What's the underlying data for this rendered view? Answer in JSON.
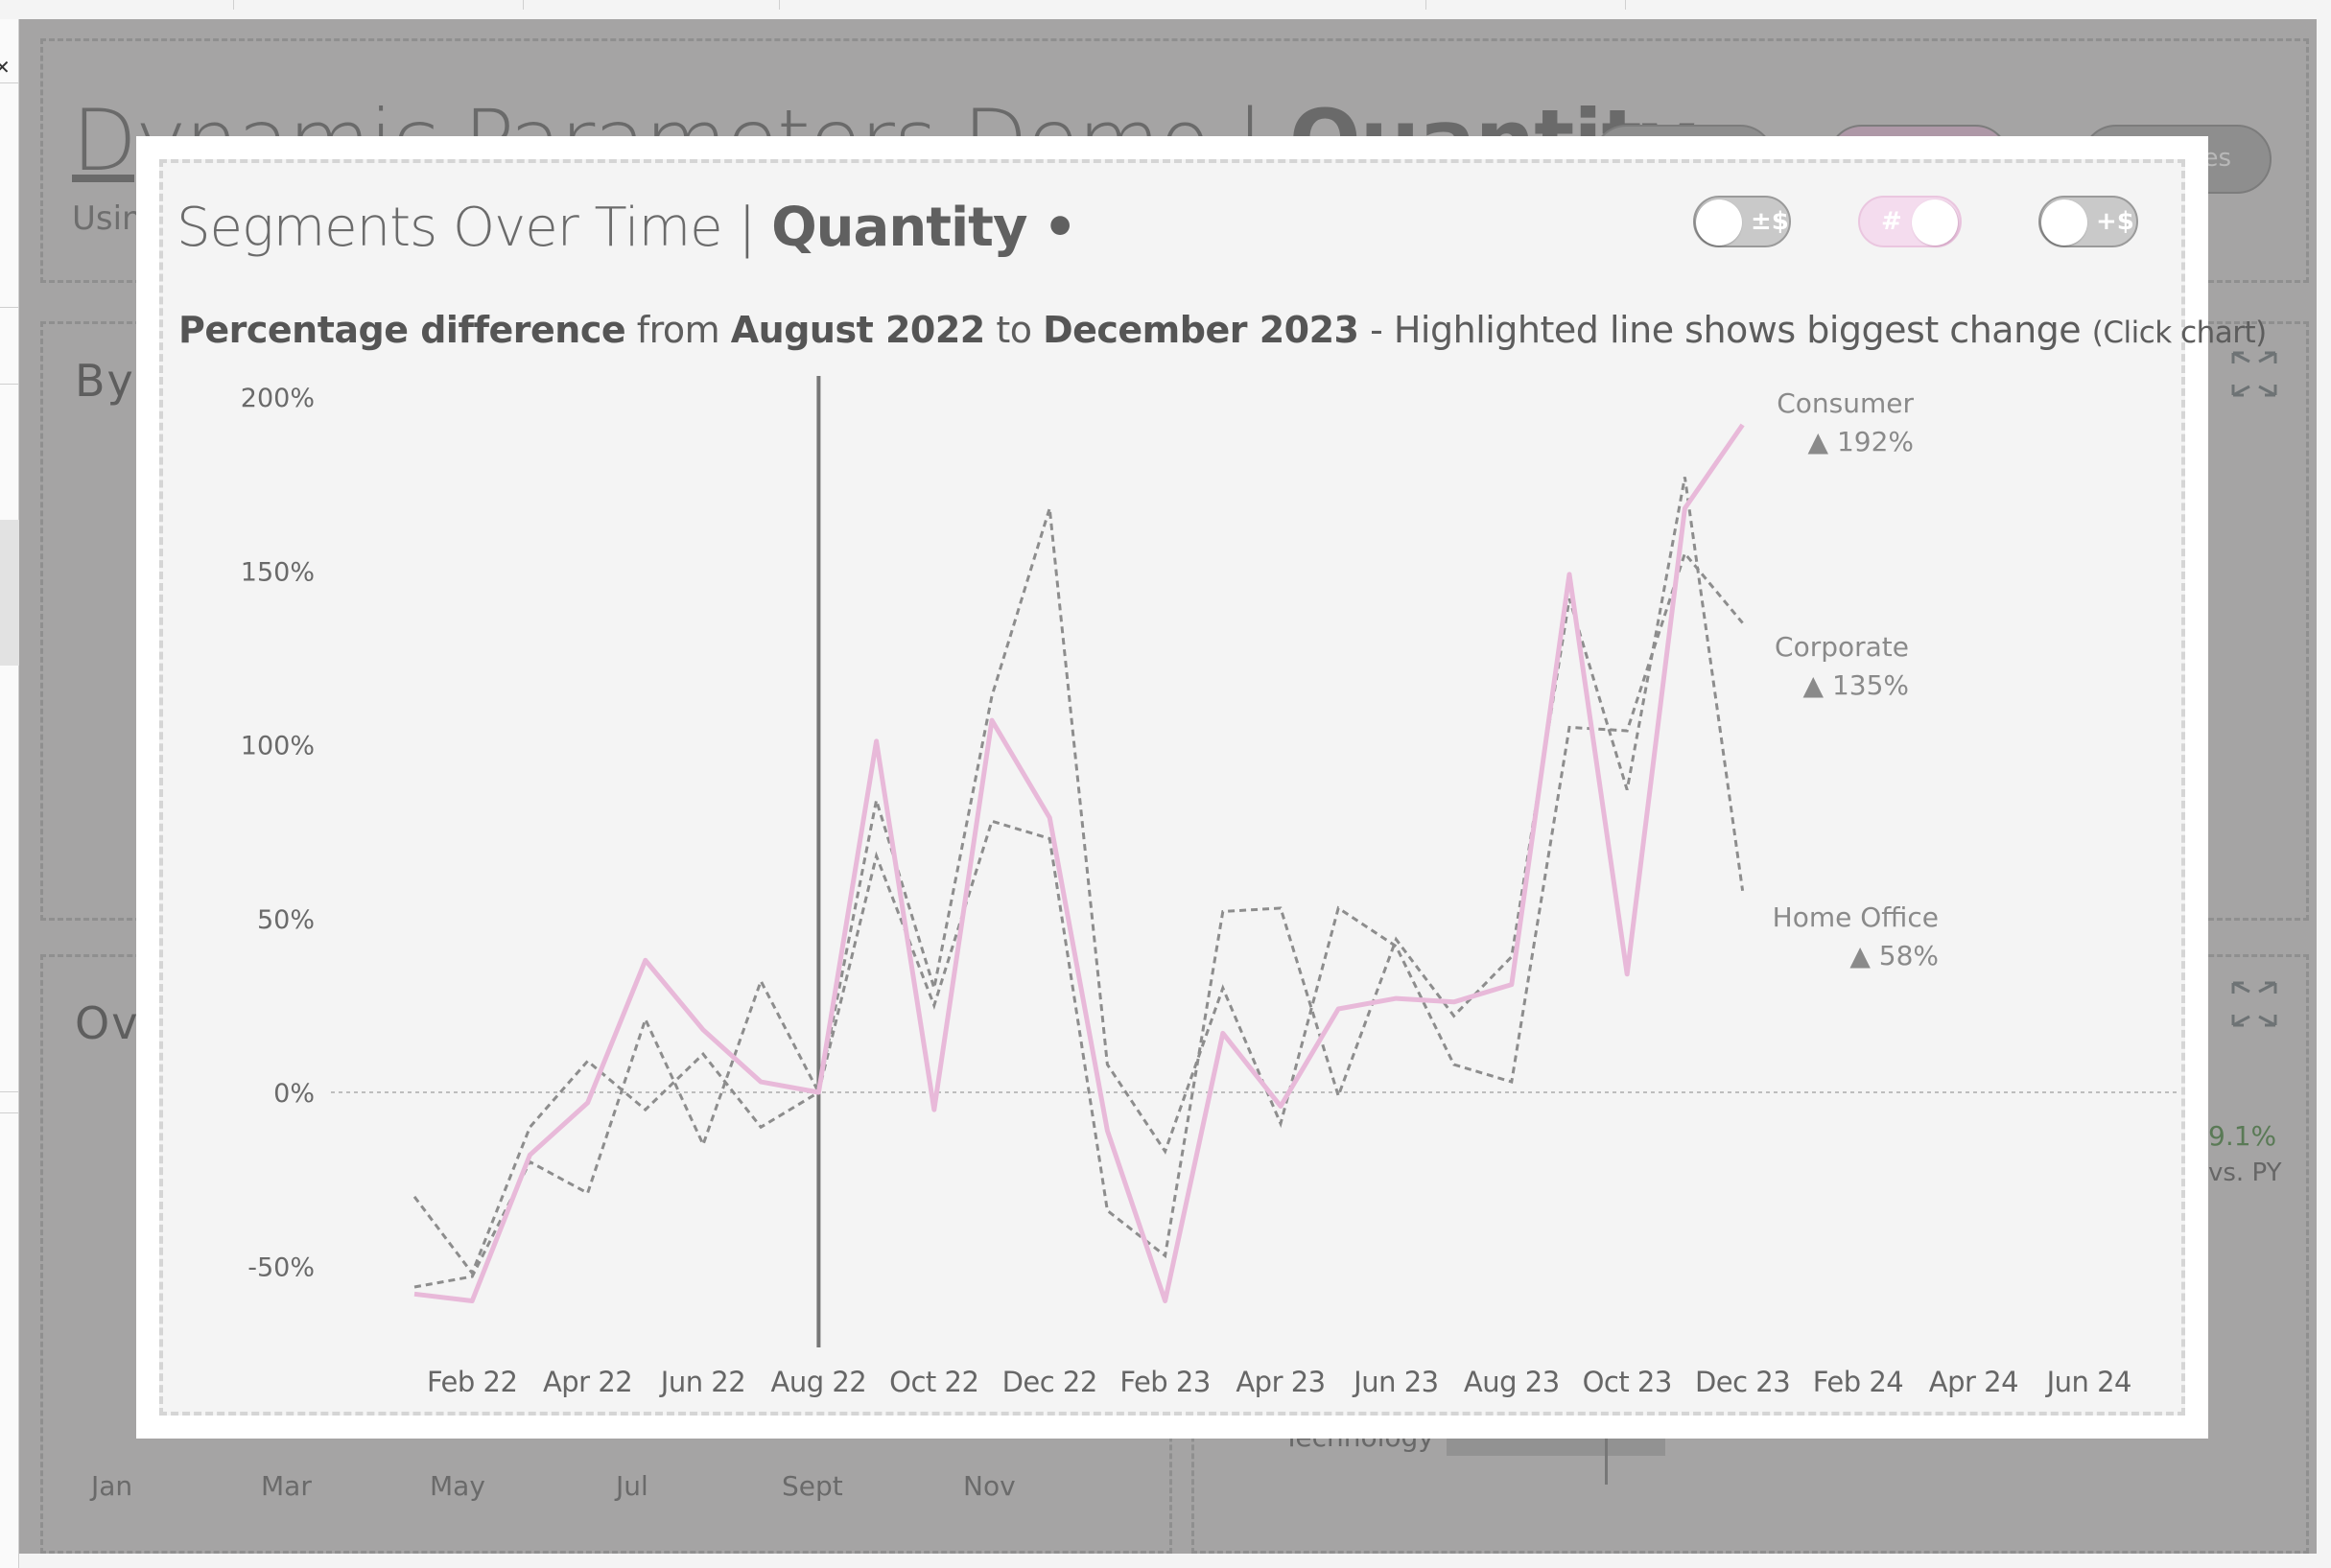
{
  "background_dashboard": {
    "title_part1": "Dynamic Parameters Demo",
    "title_sep": "|",
    "title_part2": "Quantity",
    "subtitle_partial": "Usin",
    "panel_titles_partial": [
      "By",
      "Ov"
    ],
    "pill_partial_text": "es",
    "month_axis": [
      "Jan",
      "Mar",
      "May",
      "Jul",
      "Sept",
      "Nov"
    ],
    "kpi_value_partial": "9.1%",
    "kpi_label_partial": "vs. PY",
    "bar_label_partial": "Technology",
    "kpi_color": "#5a7a56"
  },
  "modal": {
    "title_regular": "Segments Over Time",
    "title_sep": "|",
    "title_bold": "Quantity",
    "title_dot": "•",
    "subtitle": {
      "t1": "Percentage difference",
      "t2": " from ",
      "t3": "August 2022",
      "t4": " to ",
      "t5": "December 2023",
      "t6": " - Highlighted line shows biggest change ",
      "t7": "(Click chart)"
    },
    "toggles": [
      {
        "name": "profit-toggle",
        "glyph": "±$",
        "on": false
      },
      {
        "name": "quantity-toggle",
        "glyph": "#",
        "on": true
      },
      {
        "name": "sales-toggle",
        "glyph": "+$",
        "on": false
      }
    ]
  },
  "colors": {
    "highlight": "#e8b9d9",
    "dashed": "#8d8d8d",
    "reference_line": "#777777",
    "zero_line": "#bdbdbd",
    "toggle_on": "#f4dcee"
  },
  "chart_data": {
    "type": "line",
    "title": "Segments Over Time | Quantity",
    "subtitle": "Percentage difference from August 2022 to December 2023 - Highlighted line shows biggest change (Click chart)",
    "xlabel": "",
    "ylabel": "",
    "x": [
      "Jan 22",
      "Feb 22",
      "Mar 22",
      "Apr 22",
      "May 22",
      "Jun 22",
      "Jul 22",
      "Aug 22",
      "Sep 22",
      "Oct 22",
      "Nov 22",
      "Dec 22",
      "Jan 23",
      "Feb 23",
      "Mar 23",
      "Apr 23",
      "May 23",
      "Jun 23",
      "Jul 23",
      "Aug 23",
      "Sep 23",
      "Oct 23",
      "Nov 23",
      "Dec 23"
    ],
    "x_axis_ticks": [
      "Feb 22",
      "Apr 22",
      "Jun 22",
      "Aug 22",
      "Oct 22",
      "Dec 22",
      "Feb 23",
      "Apr 23",
      "Jun 23",
      "Aug 23",
      "Oct 23",
      "Dec 23",
      "Feb 24",
      "Apr 24",
      "Jun 24"
    ],
    "x_axis_range": [
      "Dec 21",
      "Jul 24"
    ],
    "y_ticks": [
      "200%",
      "150%",
      "100%",
      "50%",
      "0%",
      "-50%"
    ],
    "y_tick_values": [
      200,
      150,
      100,
      50,
      0,
      -50
    ],
    "ylim": [
      -72,
      206
    ],
    "reference_line_x": "Aug 22",
    "zero_line": true,
    "grid": false,
    "series": [
      {
        "name": "Consumer",
        "highlighted": true,
        "style": "solid",
        "end_label": "192%",
        "end_arrow": "▲",
        "values": [
          -58,
          -60,
          -18,
          -3,
          38,
          18,
          3,
          0,
          101,
          -5,
          107,
          79,
          -11,
          -60,
          17,
          -4,
          24,
          27,
          26,
          31,
          149,
          34,
          168,
          192
        ]
      },
      {
        "name": "Corporate",
        "highlighted": false,
        "style": "dashed",
        "end_label": "135%",
        "end_arrow": "▲",
        "values": [
          -56,
          -53,
          -20,
          -29,
          21,
          -15,
          32,
          0,
          84,
          30,
          114,
          168,
          8,
          -17,
          30,
          -9,
          53,
          42,
          8,
          3,
          105,
          104,
          155,
          135
        ]
      },
      {
        "name": "Home Office",
        "highlighted": false,
        "style": "dashed",
        "end_label": "58%",
        "end_arrow": "▲",
        "values": [
          -30,
          -52,
          -10,
          9,
          -5,
          11,
          -10,
          0,
          68,
          25,
          78,
          73,
          -34,
          -47,
          52,
          53,
          -1,
          44,
          22,
          39,
          142,
          87,
          177,
          58
        ]
      }
    ],
    "legend": "direct labels at line ends (right)"
  }
}
